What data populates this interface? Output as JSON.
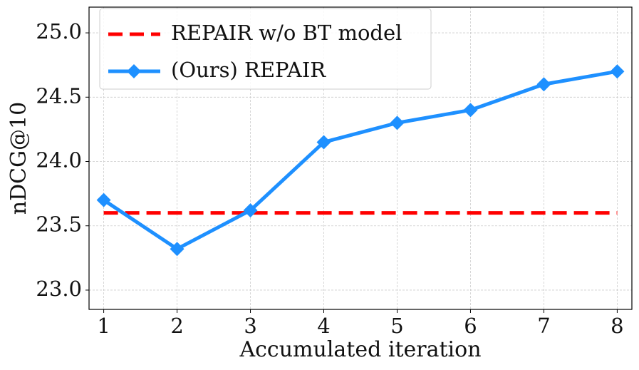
{
  "chart_data": {
    "type": "line",
    "x_label": "Accumulated iteration",
    "y_label": "nDCG@10",
    "x": [
      1,
      2,
      3,
      4,
      5,
      6,
      7,
      8
    ],
    "xlim": [
      0.8,
      8.2
    ],
    "xticks": [
      1,
      2,
      3,
      4,
      5,
      6,
      7,
      8
    ],
    "ylim": [
      22.85,
      25.2
    ],
    "yticks": [
      {
        "value": 23,
        "label": "23.0"
      },
      23.5,
      {
        "value": 24,
        "label": "24.0"
      },
      24.5,
      {
        "value": 25,
        "label": "25.0"
      }
    ],
    "grid": true,
    "legend": "upper left",
    "series": [
      {
        "name": "REPAIR w/o BT model",
        "color": "#ff0000",
        "linestyle": "dashed",
        "marker": "none",
        "values": [
          23.6,
          23.6,
          23.6,
          23.6,
          23.6,
          23.6,
          23.6,
          23.6
        ]
      },
      {
        "name": "(Ours) REPAIR",
        "color": "#1e90ff",
        "linestyle": "solid",
        "marker": "diamond",
        "values": [
          23.7,
          23.32,
          23.62,
          24.15,
          24.3,
          24.4,
          24.6,
          24.7
        ]
      }
    ]
  }
}
